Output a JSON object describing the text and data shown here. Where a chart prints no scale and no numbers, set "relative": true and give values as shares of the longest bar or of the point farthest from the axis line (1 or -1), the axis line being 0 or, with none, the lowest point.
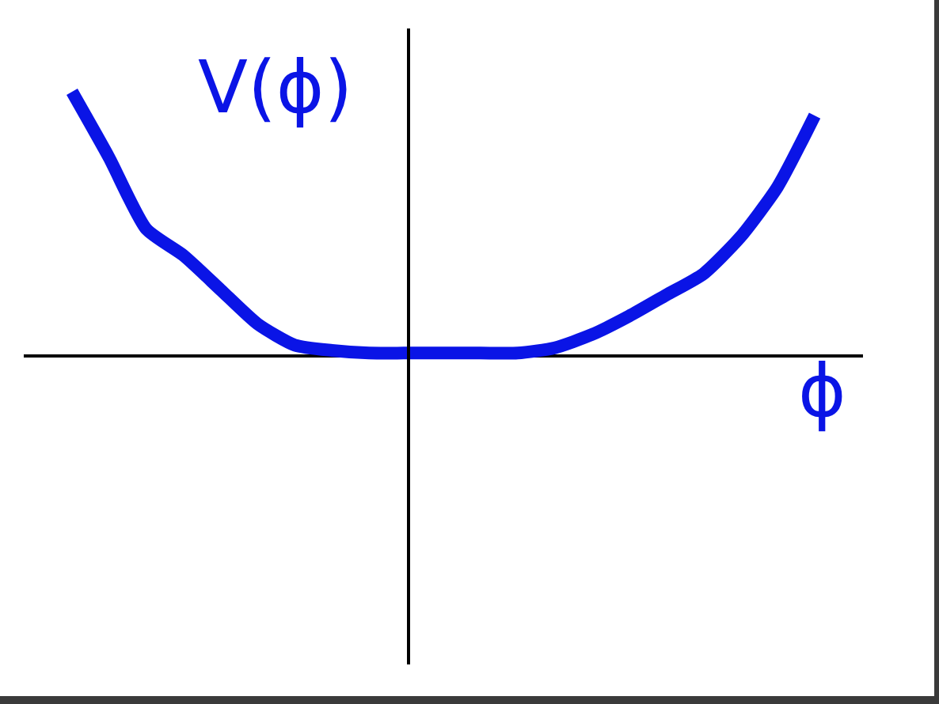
{
  "chart_data": {
    "type": "line",
    "relative": true,
    "xlabel": "ϕ",
    "ylabel": "V(ϕ)",
    "tick_labels": false,
    "categories": [
      null,
      null,
      null,
      null,
      null,
      null,
      null,
      null,
      null,
      null,
      null,
      null,
      null,
      null,
      null,
      null,
      null,
      null,
      null,
      null,
      null
    ],
    "series": [
      {
        "color": "#0a14e6",
        "values": [
          1.0,
          0.75,
          0.48,
          0.38,
          0.25,
          0.12,
          0.04,
          0.02,
          0.01,
          0.01,
          0.01,
          0.01,
          0.01,
          0.03,
          0.08,
          0.15,
          0.23,
          0.31,
          0.45,
          0.64,
          0.91
        ]
      }
    ]
  }
}
